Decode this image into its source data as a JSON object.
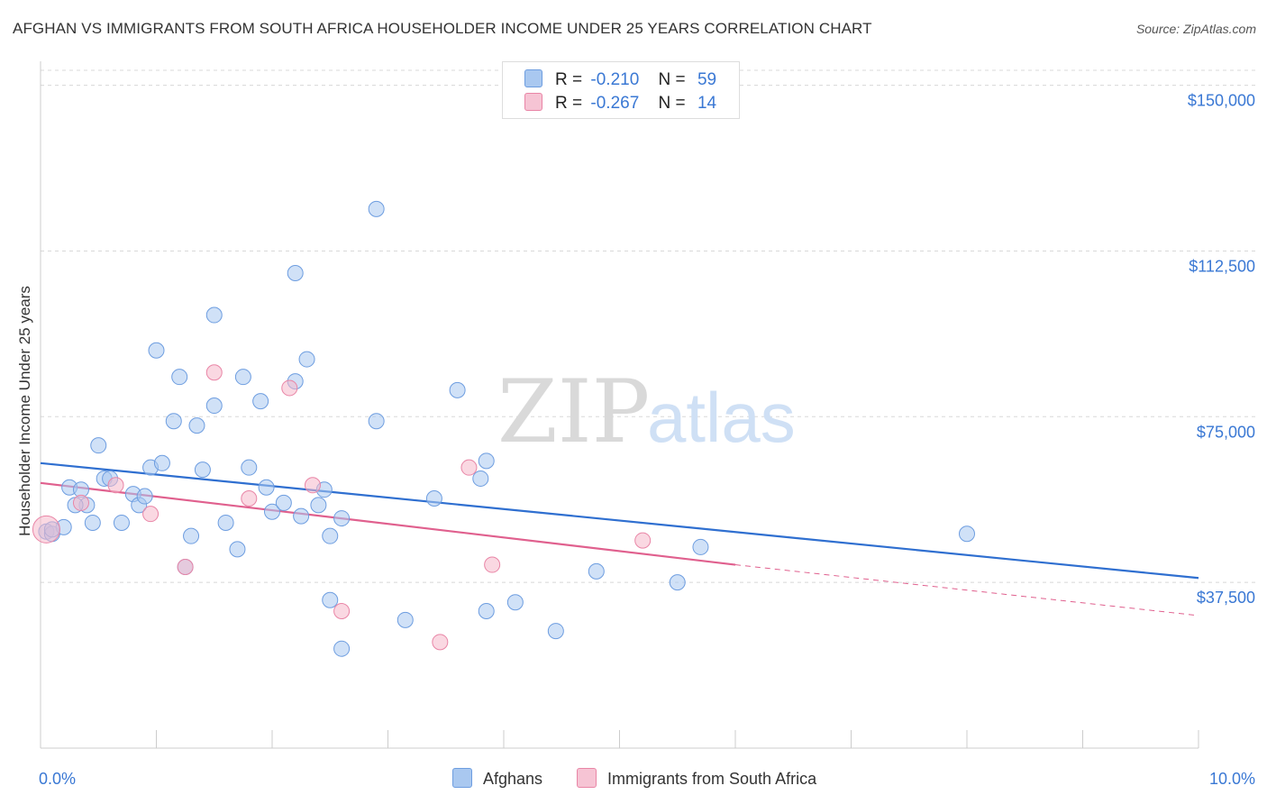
{
  "header": {
    "title": "AFGHAN VS IMMIGRANTS FROM SOUTH AFRICA HOUSEHOLDER INCOME UNDER 25 YEARS CORRELATION CHART",
    "source": "Source: ZipAtlas.com"
  },
  "watermark": {
    "zip": "ZIP",
    "atlas": "atlas"
  },
  "legend": {
    "r_label": "R =",
    "n_label": "N =",
    "series": [
      {
        "r": "-0.210",
        "n": "59"
      },
      {
        "r": "-0.267",
        "n": "14"
      }
    ]
  },
  "bottom_legend": {
    "blue": "Afghans",
    "pink": "Immigrants from South Africa"
  },
  "colors": {
    "blue_fill": "#a9c8f0",
    "blue_stroke": "#6d9de0",
    "blue_line": "#2f6fd0",
    "pink_fill": "#f6b8cb",
    "pink_stroke": "#e985a6",
    "pink_line": "#e0608e",
    "axis_text": "#3a78d4",
    "grid": "#d8d8d8"
  },
  "chart_data": {
    "type": "scatter",
    "title": "AFGHAN VS IMMIGRANTS FROM SOUTH AFRICA HOUSEHOLDER INCOME UNDER 25 YEARS CORRELATION CHART",
    "xlabel": "",
    "ylabel": "Householder Income Under 25 years",
    "x_tick_labels": [
      "0.0%",
      "10.0%"
    ],
    "y_tick_labels": [
      "$37,500",
      "$75,000",
      "$112,500",
      "$150,000"
    ],
    "y_ticks": [
      37500,
      75000,
      112500,
      150000
    ],
    "xlim": [
      0,
      10
    ],
    "ylim": [
      0,
      154000
    ],
    "grid": true,
    "legend_position": "top-center",
    "series": [
      {
        "name": "Afghans",
        "points": [
          [
            0.05,
            49000
          ],
          [
            0.1,
            48500
          ],
          [
            0.2,
            50000
          ],
          [
            0.25,
            59000
          ],
          [
            0.35,
            58500
          ],
          [
            0.4,
            55000
          ],
          [
            0.45,
            51000
          ],
          [
            0.5,
            68500
          ],
          [
            0.55,
            61000
          ],
          [
            0.6,
            61000
          ],
          [
            0.7,
            51000
          ],
          [
            0.8,
            57500
          ],
          [
            0.85,
            55000
          ],
          [
            0.9,
            57000
          ],
          [
            0.95,
            63500
          ],
          [
            1.0,
            90000
          ],
          [
            1.05,
            64500
          ],
          [
            1.15,
            74000
          ],
          [
            1.2,
            84000
          ],
          [
            1.25,
            41000
          ],
          [
            1.3,
            48000
          ],
          [
            1.35,
            73000
          ],
          [
            1.4,
            63000
          ],
          [
            1.5,
            77500
          ],
          [
            1.5,
            98000
          ],
          [
            1.6,
            51000
          ],
          [
            1.7,
            45000
          ],
          [
            1.75,
            84000
          ],
          [
            1.8,
            63500
          ],
          [
            1.9,
            78500
          ],
          [
            1.95,
            59000
          ],
          [
            2.0,
            53500
          ],
          [
            2.1,
            55500
          ],
          [
            2.2,
            83000
          ],
          [
            2.2,
            107500
          ],
          [
            2.25,
            52500
          ],
          [
            2.3,
            88000
          ],
          [
            2.4,
            55000
          ],
          [
            2.45,
            58500
          ],
          [
            2.5,
            48000
          ],
          [
            2.5,
            33500
          ],
          [
            2.6,
            52000
          ],
          [
            2.6,
            22500
          ],
          [
            2.9,
            122000
          ],
          [
            2.9,
            74000
          ],
          [
            3.15,
            29000
          ],
          [
            3.4,
            56500
          ],
          [
            3.6,
            81000
          ],
          [
            3.8,
            61000
          ],
          [
            3.85,
            65000
          ],
          [
            3.85,
            31000
          ],
          [
            4.1,
            33000
          ],
          [
            4.45,
            26500
          ],
          [
            4.8,
            40000
          ],
          [
            5.5,
            37500
          ],
          [
            5.7,
            45500
          ],
          [
            8.0,
            48500
          ],
          [
            0.1,
            49500
          ],
          [
            0.3,
            55000
          ]
        ],
        "trend": [
          [
            0,
            64500
          ],
          [
            10,
            38500
          ]
        ]
      },
      {
        "name": "Immigrants from South Africa",
        "points": [
          [
            0.05,
            49500
          ],
          [
            0.35,
            55500
          ],
          [
            0.65,
            59500
          ],
          [
            0.95,
            53000
          ],
          [
            1.25,
            41000
          ],
          [
            1.5,
            85000
          ],
          [
            1.8,
            56500
          ],
          [
            2.15,
            81500
          ],
          [
            2.35,
            59500
          ],
          [
            2.6,
            31000
          ],
          [
            3.45,
            24000
          ],
          [
            3.7,
            63500
          ],
          [
            3.9,
            41500
          ],
          [
            5.2,
            47000
          ]
        ],
        "trend": [
          [
            0,
            60000
          ],
          [
            6.0,
            41500
          ]
        ],
        "trend_extension": [
          [
            6.0,
            41500
          ],
          [
            10,
            30000
          ]
        ]
      }
    ]
  }
}
